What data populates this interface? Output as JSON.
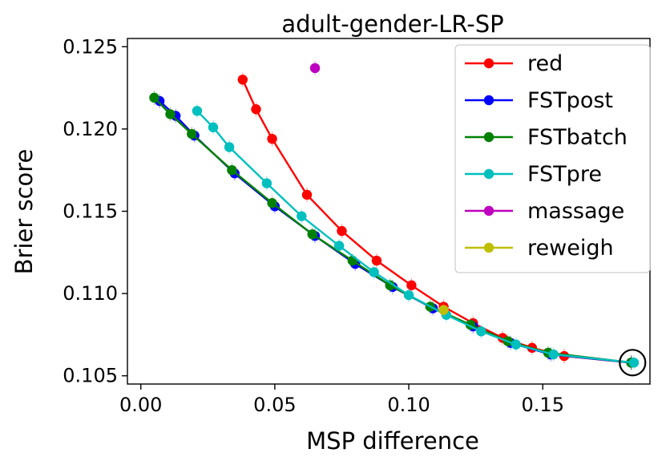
{
  "chart_data": {
    "type": "line",
    "title": "adult-gender-LR-SP",
    "xlabel": "MSP difference",
    "ylabel": "Brier score",
    "xlim": [
      -0.005,
      0.19
    ],
    "ylim": [
      0.1045,
      0.1255
    ],
    "xticks": [
      0.0,
      0.05,
      0.1,
      0.15
    ],
    "xtick_labels": [
      "0.00",
      "0.05",
      "0.10",
      "0.15"
    ],
    "yticks": [
      0.105,
      0.11,
      0.115,
      0.12,
      0.125
    ],
    "ytick_labels": [
      "0.105",
      "0.110",
      "0.115",
      "0.120",
      "0.125"
    ],
    "legend_position": "top-right",
    "grid": false,
    "series": [
      {
        "name": "red",
        "color": "#ff0000",
        "x": [
          0.038,
          0.043,
          0.049,
          0.062,
          0.075,
          0.088,
          0.101,
          0.113,
          0.124,
          0.135,
          0.146,
          0.158,
          0.183
        ],
        "y": [
          0.123,
          0.1212,
          0.1194,
          0.116,
          0.1138,
          0.112,
          0.1105,
          0.1092,
          0.1082,
          0.1073,
          0.1067,
          0.1062,
          0.1058
        ]
      },
      {
        "name": "FSTpost",
        "color": "#0000ff",
        "x": [
          0.007,
          0.013,
          0.02,
          0.035,
          0.05,
          0.065,
          0.08,
          0.094,
          0.109,
          0.124,
          0.138,
          0.153,
          0.183
        ],
        "y": [
          0.1217,
          0.1208,
          0.1196,
          0.1173,
          0.1153,
          0.1135,
          0.1118,
          0.1104,
          0.1091,
          0.108,
          0.107,
          0.1063,
          0.1058
        ]
      },
      {
        "name": "FSTbatch",
        "color": "#008000",
        "x": [
          0.005,
          0.011,
          0.019,
          0.034,
          0.049,
          0.064,
          0.079,
          0.093,
          0.108,
          0.123,
          0.137,
          0.152,
          0.183
        ],
        "y": [
          0.1219,
          0.1209,
          0.1197,
          0.1175,
          0.1155,
          0.1136,
          0.112,
          0.1105,
          0.1092,
          0.1081,
          0.1071,
          0.1064,
          0.1058
        ]
      },
      {
        "name": "FSTpre",
        "color": "#00bfbf",
        "x": [
          0.021,
          0.027,
          0.033,
          0.047,
          0.06,
          0.074,
          0.087,
          0.1,
          0.114,
          0.127,
          0.14,
          0.154,
          0.184
        ],
        "y": [
          0.1211,
          0.1201,
          0.1189,
          0.1167,
          0.1147,
          0.1129,
          0.1113,
          0.1099,
          0.1087,
          0.1077,
          0.1069,
          0.1063,
          0.1058
        ]
      },
      {
        "name": "massage",
        "color": "#bf00bf",
        "x": [
          0.065
        ],
        "y": [
          0.1237
        ]
      },
      {
        "name": "reweigh",
        "color": "#bfbf00",
        "x": [
          0.113
        ],
        "y": [
          0.109
        ]
      }
    ],
    "annotations": [
      {
        "type": "circle",
        "x": 0.1835,
        "y": 0.1058
      }
    ]
  }
}
